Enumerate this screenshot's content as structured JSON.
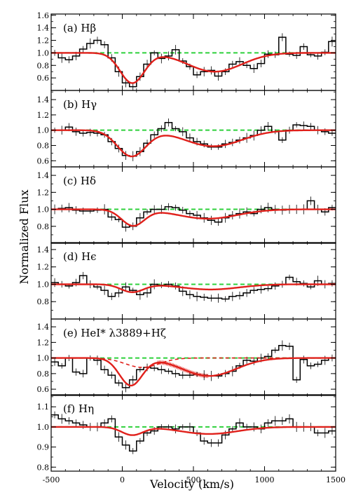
{
  "chart_data": {
    "type": "line",
    "shared_x_axis": {
      "label": "Velocity (km/s)",
      "range": [
        -500,
        1500
      ],
      "ticks": [
        -500,
        0,
        500,
        1000,
        1500
      ],
      "tick_labels": [
        "-500",
        "0",
        "500",
        "1000",
        "1500"
      ]
    },
    "y_axis_label": "Normalized Flux",
    "continuum_level": 1.0,
    "colors": {
      "data": "#000000",
      "model": "#e0201b",
      "continuum": "#2fd13c"
    },
    "panels": [
      {
        "id": "a",
        "label": "(a) Hβ",
        "ylim": [
          0.4,
          1.62
        ],
        "yticks": [
          0.6,
          0.8,
          1.0,
          1.2,
          1.4,
          1.6
        ],
        "ytick_labels": [
          "0.6",
          "0.8",
          "1.0",
          "1.2",
          "1.4",
          "1.6"
        ],
        "data_step": {
          "bin_start": -500,
          "bin_width": 50,
          "flux": [
            1.0,
            0.92,
            0.89,
            0.95,
            1.06,
            1.15,
            1.2,
            1.13,
            0.92,
            0.7,
            0.52,
            0.46,
            0.62,
            0.82,
            1.0,
            0.91,
            0.95,
            1.05,
            0.87,
            0.78,
            0.65,
            0.7,
            0.72,
            0.63,
            0.7,
            0.82,
            0.86,
            0.8,
            0.75,
            0.83,
            0.98,
            0.97,
            1.25,
            0.98,
            0.96,
            1.1,
            0.97,
            0.95,
            1.01,
            1.18
          ]
        },
        "model": {
          "components": [
            {
              "center": 70,
              "sigma": 85,
              "depth": 0.48
            },
            {
              "center": 650,
              "sigma": 190,
              "depth": 0.3
            }
          ]
        }
      },
      {
        "id": "b",
        "label": "(b) Hγ",
        "ylim": [
          0.52,
          1.52
        ],
        "yticks": [
          0.6,
          0.8,
          1.0,
          1.2,
          1.4
        ],
        "ytick_labels": [
          "0.6",
          "0.8",
          "1.0",
          "1.2",
          "1.4"
        ],
        "data_step": {
          "bin_start": -500,
          "bin_width": 50,
          "flux": [
            1.0,
            1.0,
            1.04,
            0.98,
            0.96,
            0.97,
            0.96,
            0.94,
            0.85,
            0.76,
            0.67,
            0.66,
            0.72,
            0.83,
            0.94,
            1.02,
            1.1,
            1.02,
            0.98,
            0.9,
            0.85,
            0.82,
            0.78,
            0.78,
            0.82,
            0.84,
            0.87,
            0.9,
            0.93,
            1.0,
            1.05,
            0.98,
            0.87,
            1.0,
            1.07,
            1.06,
            1.05,
            1.0,
            0.98,
            0.96
          ]
        },
        "model": {
          "components": [
            {
              "center": 65,
              "sigma": 100,
              "depth": 0.34
            },
            {
              "center": 640,
              "sigma": 200,
              "depth": 0.21
            }
          ]
        }
      },
      {
        "id": "c",
        "label": "(c) Hδ",
        "ylim": [
          0.6,
          1.5
        ],
        "yticks": [
          0.8,
          1.0,
          1.2,
          1.4
        ],
        "ytick_labels": [
          "0.8",
          "1.0",
          "1.2",
          "1.4"
        ],
        "data_step": {
          "bin_start": -500,
          "bin_width": 50,
          "flux": [
            1.0,
            1.01,
            1.02,
            0.99,
            0.98,
            0.98,
            0.99,
            1.0,
            0.91,
            0.88,
            0.79,
            0.8,
            0.9,
            0.97,
            1.0,
            1.0,
            1.03,
            1.02,
            0.99,
            0.95,
            0.93,
            0.9,
            0.87,
            0.85,
            0.9,
            0.93,
            0.95,
            0.97,
            0.95,
            1.0,
            1.02,
            1.0,
            0.99,
            1.0,
            1.0,
            1.0,
            1.1,
            1.0,
            0.97,
            1.02
          ]
        },
        "model": {
          "components": [
            {
              "center": 75,
              "sigma": 80,
              "depth": 0.19
            },
            {
              "center": 600,
              "sigma": 210,
              "depth": 0.11
            }
          ]
        }
      },
      {
        "id": "d",
        "label": "(d) Hϵ",
        "ylim": [
          0.6,
          1.48
        ],
        "yticks": [
          0.8,
          1.0,
          1.2,
          1.4
        ],
        "ytick_labels": [
          "0.8",
          "1.0",
          "1.2",
          "1.4"
        ],
        "data_step": {
          "bin_start": -500,
          "bin_width": 50,
          "flux": [
            1.02,
            1.0,
            0.98,
            1.02,
            1.1,
            1.0,
            0.97,
            0.93,
            0.86,
            0.9,
            0.97,
            0.93,
            0.88,
            0.9,
            1.0,
            0.99,
            1.0,
            0.98,
            0.92,
            0.88,
            0.86,
            0.85,
            0.84,
            0.84,
            0.83,
            0.86,
            0.87,
            0.9,
            0.93,
            0.94,
            0.95,
            0.98,
            1.0,
            1.08,
            1.03,
            1.01,
            0.97,
            1.04,
            1.0,
            1.01
          ]
        },
        "model": {
          "components": [
            {
              "center": 70,
              "sigma": 80,
              "depth": 0.09
            },
            {
              "center": 620,
              "sigma": 200,
              "depth": 0.06
            }
          ]
        }
      },
      {
        "id": "e",
        "label": "(e) HeI* λ3889+Hζ",
        "ylim": [
          0.52,
          1.5
        ],
        "yticks": [
          0.6,
          0.8,
          1.0,
          1.2,
          1.4
        ],
        "ytick_labels": [
          "0.6",
          "0.8",
          "1.0",
          "1.2",
          "1.4"
        ],
        "data_step": {
          "bin_start": -500,
          "bin_width": 50,
          "flux": [
            0.95,
            0.9,
            1.0,
            0.82,
            0.8,
            1.0,
            0.97,
            0.85,
            0.78,
            0.68,
            0.62,
            0.72,
            0.85,
            0.88,
            0.87,
            0.85,
            0.83,
            0.8,
            0.78,
            0.78,
            0.79,
            0.78,
            0.77,
            0.77,
            0.8,
            0.83,
            0.9,
            0.97,
            0.96,
            1.0,
            1.02,
            1.1,
            1.16,
            1.15,
            0.72,
            0.98,
            0.9,
            0.92,
            0.97,
            1.0
          ]
        },
        "model": {
          "components": [
            {
              "center": 60,
              "sigma": 80,
              "depth": 0.35
            },
            {
              "center": 610,
              "sigma": 190,
              "depth": 0.23
            }
          ]
        },
        "model_component_dashed": {
          "components": [
            {
              "center": 140,
              "sigma": 120,
              "depth": 0.12
            }
          ]
        }
      },
      {
        "id": "f",
        "label": "(f) Hη",
        "ylim": [
          0.78,
          1.16
        ],
        "yticks": [
          0.8,
          0.9,
          1.0,
          1.1
        ],
        "ytick_labels": [
          "0.8",
          "0.9",
          "1.0",
          "1.1"
        ],
        "data_step": {
          "bin_start": -500,
          "bin_width": 50,
          "flux": [
            1.06,
            1.04,
            1.03,
            1.02,
            1.01,
            1.0,
            1.0,
            1.02,
            1.04,
            0.95,
            0.91,
            0.88,
            0.93,
            0.97,
            0.98,
            1.0,
            1.0,
            0.99,
            1.0,
            1.0,
            0.97,
            0.93,
            0.92,
            0.92,
            0.96,
            0.99,
            1.02,
            1.0,
            1.0,
            0.99,
            1.02,
            1.03,
            1.03,
            1.04,
            1.0,
            1.0,
            1.0,
            0.97,
            0.97,
            0.98
          ]
        },
        "model": {
          "components": [
            {
              "center": 70,
              "sigma": 75,
              "depth": 0.04
            },
            {
              "center": 610,
              "sigma": 200,
              "depth": 0.035
            }
          ]
        }
      }
    ]
  }
}
